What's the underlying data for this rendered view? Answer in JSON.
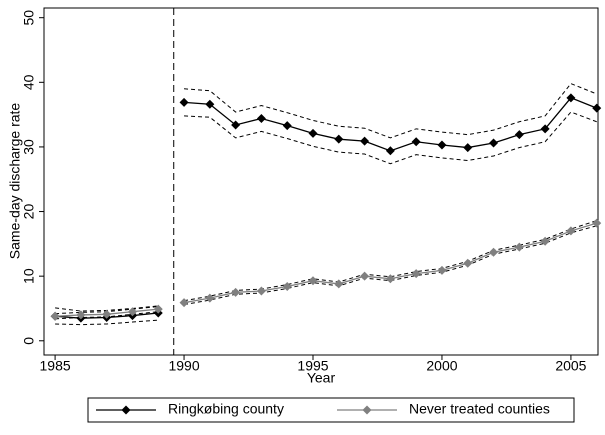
{
  "chart_data": {
    "type": "line",
    "x_label": "Year",
    "y_label": "Same-day discharge rate",
    "x": [
      1985,
      1986,
      1987,
      1988,
      1989,
      1990,
      1991,
      1992,
      1993,
      1994,
      1995,
      1996,
      1997,
      1998,
      1999,
      2000,
      2001,
      2002,
      2003,
      2004,
      2005,
      2006
    ],
    "series": [
      {
        "name": "Ringkøbing county",
        "color": "#000000",
        "marker": "diamond",
        "values": [
          3.8,
          3.5,
          3.6,
          3.9,
          4.3,
          36.9,
          36.6,
          33.4,
          34.4,
          33.3,
          32.1,
          31.2,
          30.9,
          29.4,
          30.8,
          30.3,
          29.9,
          30.6,
          31.9,
          32.8,
          37.6,
          36.0
        ],
        "ci_lower": [
          2.6,
          2.5,
          2.6,
          2.9,
          3.2,
          34.8,
          34.6,
          31.4,
          32.4,
          31.3,
          30.1,
          29.2,
          28.9,
          27.4,
          28.8,
          28.3,
          27.9,
          28.6,
          29.9,
          30.8,
          35.4,
          33.9
        ],
        "ci_upper": [
          5.1,
          4.6,
          4.7,
          5.0,
          5.4,
          39.0,
          38.7,
          35.4,
          36.4,
          35.3,
          34.1,
          33.2,
          32.9,
          31.4,
          32.8,
          32.3,
          31.9,
          32.6,
          33.9,
          34.8,
          39.8,
          38.2
        ]
      },
      {
        "name": "Never treated counties",
        "color": "#808080",
        "marker": "diamond",
        "values": [
          3.8,
          4.0,
          4.1,
          4.5,
          4.9,
          5.9,
          6.6,
          7.5,
          7.7,
          8.4,
          9.3,
          8.8,
          10.0,
          9.6,
          10.4,
          10.9,
          12.0,
          13.7,
          14.5,
          15.4,
          17.0,
          18.2
        ],
        "ci_lower": [
          3.4,
          3.6,
          3.7,
          4.1,
          4.5,
          5.6,
          6.3,
          7.2,
          7.4,
          8.1,
          9.0,
          8.5,
          9.7,
          9.3,
          10.1,
          10.6,
          11.7,
          13.4,
          14.2,
          15.1,
          16.7,
          17.8
        ],
        "ci_upper": [
          4.2,
          4.4,
          4.5,
          4.9,
          5.3,
          6.2,
          6.9,
          7.8,
          8.0,
          8.7,
          9.6,
          9.1,
          10.3,
          9.9,
          10.7,
          11.2,
          12.3,
          14.0,
          14.8,
          15.7,
          17.3,
          18.6
        ]
      }
    ],
    "vline_x": 1989.6,
    "xlim": [
      1984.57,
      2006.05
    ],
    "ylim": [
      -2.2,
      51.5
    ],
    "xticks": [
      1985,
      1990,
      1995,
      2000,
      2005
    ],
    "yticks": [
      0,
      10,
      20,
      30,
      40,
      50
    ],
    "legend": "bottom"
  }
}
